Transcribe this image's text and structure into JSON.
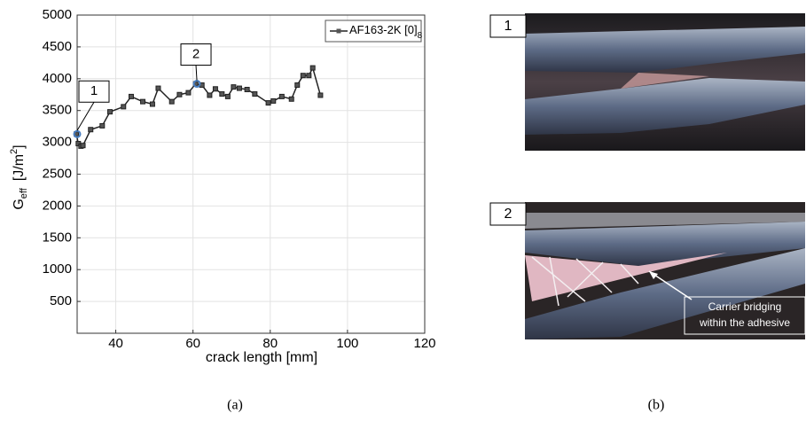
{
  "chart_data": {
    "type": "line",
    "xlabel": "crack length [mm]",
    "ylabel": {
      "main": "G",
      "sub": "eff",
      "unit": "[J/m",
      "sup": "2",
      "close": "]"
    },
    "x": [
      29.8,
      30.3,
      31,
      31.5,
      33.5,
      36.5,
      38.5,
      42,
      44,
      47,
      49.5,
      51,
      54.5,
      56.5,
      58.8,
      60.7,
      62.3,
      64.3,
      65.8,
      67.5,
      69,
      70.5,
      72,
      74,
      76,
      79.5,
      80.8,
      83,
      85.5,
      87,
      88.5,
      90,
      91,
      93
    ],
    "series": [
      {
        "name": "AF163-2K [0]",
        "name_sub": "8",
        "color": "#222222",
        "values": [
          3130,
          2980,
          2940,
          2950,
          3200,
          3260,
          3480,
          3560,
          3720,
          3640,
          3600,
          3850,
          3640,
          3750,
          3780,
          3920,
          3900,
          3740,
          3840,
          3760,
          3720,
          3870,
          3850,
          3830,
          3760,
          3620,
          3650,
          3720,
          3680,
          3900,
          4050,
          4050,
          4170,
          3740
        ]
      }
    ],
    "xlim": [
      30,
      120
    ],
    "xticks": [
      40,
      60,
      80,
      100,
      120
    ],
    "ylim": [
      0,
      5000
    ],
    "yticks": [
      500,
      1000,
      1500,
      2000,
      2500,
      3000,
      3500,
      4000,
      4500,
      5000
    ],
    "grid": true,
    "legend": "upper right",
    "annotations": [
      {
        "label": "1",
        "x": 30,
        "y": 3130,
        "color": "#4a7fc1"
      },
      {
        "label": "2",
        "x": 61,
        "y": 3920,
        "color": "#4a7fc1"
      }
    ]
  },
  "figure": {
    "panel_a": "(a)",
    "panel_b": "(b)",
    "photo_1": "1",
    "photo_2": "2",
    "callout": [
      "Carrier bridging",
      "within the adhesive"
    ]
  }
}
